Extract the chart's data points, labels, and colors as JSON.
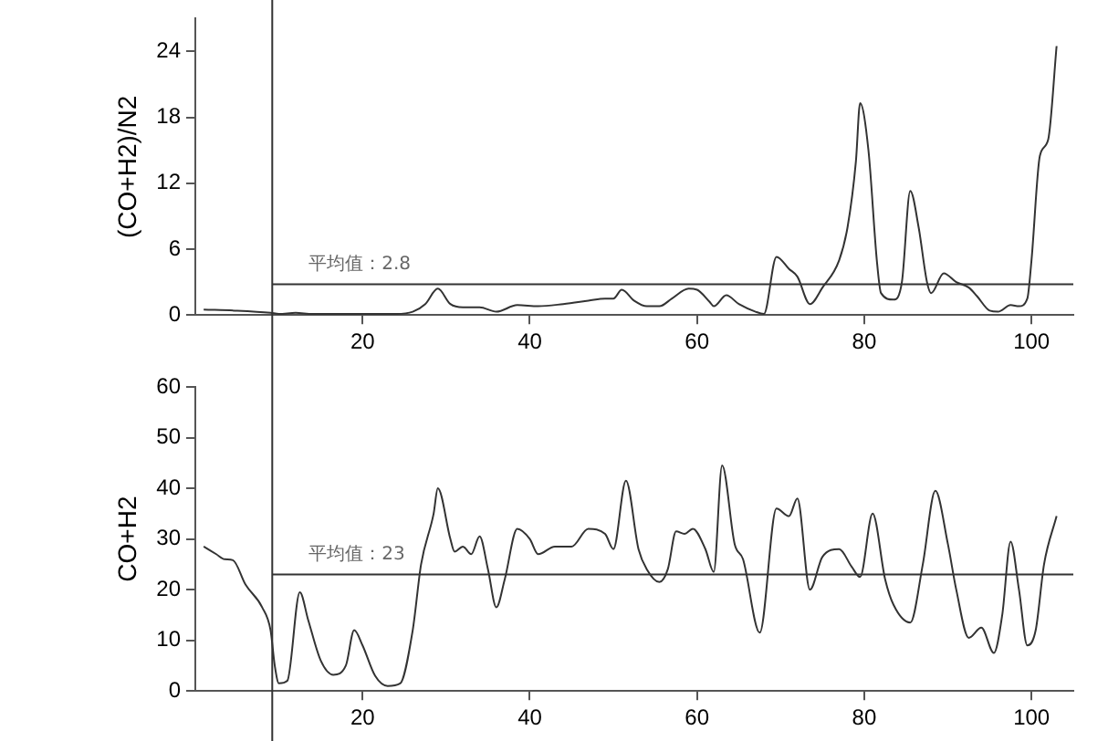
{
  "chart_data": [
    {
      "type": "line",
      "ylabel": "(CO+H2)/N2",
      "xlim": [
        0,
        105
      ],
      "xticks": [
        20,
        40,
        60,
        80,
        100
      ],
      "ylim": [
        0,
        27
      ],
      "yticks": [
        0,
        6,
        12,
        18,
        24
      ],
      "grid": false,
      "legend": false,
      "marker": "none",
      "line_style": "solid",
      "series": [
        {
          "color": "#333333",
          "x": [
            1,
            5,
            9,
            10,
            12,
            14,
            20,
            24,
            26,
            27.5,
            29,
            30.5,
            32,
            34,
            36,
            38.5,
            41,
            44,
            47,
            49,
            50,
            51,
            52.5,
            54,
            55.5,
            57,
            59,
            60,
            61.5,
            62,
            63.5,
            65,
            67,
            68,
            69.5,
            71,
            72,
            73.5,
            75,
            77,
            78,
            79,
            79.5,
            80.5,
            81.5,
            82,
            83.5,
            84.5,
            85.5,
            86.5,
            87.5,
            88,
            89.5,
            91,
            92.5,
            93.5,
            95,
            96,
            97.5,
            98.5,
            99.5,
            100,
            101,
            102,
            103
          ],
          "values": [
            0.5,
            0.4,
            0.2,
            0.1,
            0.2,
            0.1,
            0.1,
            0.1,
            0.3,
            1,
            2.4,
            1,
            0.7,
            0.7,
            0.3,
            0.9,
            0.8,
            1,
            1.3,
            1.5,
            1.5,
            2.3,
            1.3,
            0.8,
            0.8,
            1.5,
            2.4,
            2.3,
            1.2,
            0.8,
            1.8,
            1,
            0.3,
            0.1,
            5.3,
            4.2,
            3.5,
            1,
            2.5,
            5,
            8,
            14,
            19.3,
            15,
            5,
            2,
            1.4,
            3,
            11.3,
            8,
            3,
            2,
            3.8,
            3,
            2.5,
            1.7,
            0.4,
            0.3,
            0.9,
            0.8,
            1.5,
            5,
            14.5,
            16,
            24.5
          ]
        }
      ],
      "ref_lines": [
        {
          "axis": "x",
          "value": 9.2
        },
        {
          "axis": "y",
          "value": 2.8,
          "label": "平均值：2.8"
        }
      ]
    },
    {
      "type": "line",
      "ylabel": "CO+H2",
      "xlim": [
        0,
        105
      ],
      "xticks": [
        20,
        40,
        60,
        80,
        100
      ],
      "ylim": [
        0,
        60
      ],
      "yticks": [
        0,
        10,
        20,
        30,
        40,
        50,
        60
      ],
      "grid": false,
      "legend": false,
      "marker": "none",
      "line_style": "solid",
      "series": [
        {
          "color": "#333333",
          "x": [
            1,
            2.5,
            3.5,
            4.5,
            6,
            8,
            9,
            9.5,
            10,
            11,
            12.5,
            13.5,
            15,
            16.5,
            18,
            19,
            20,
            21.5,
            23,
            24.5,
            26,
            27,
            28.5,
            29,
            30.5,
            31,
            32,
            33,
            34,
            35,
            36,
            37,
            38.5,
            40,
            41,
            43,
            45,
            47,
            49,
            50,
            51.5,
            53,
            54,
            55.5,
            56.5,
            57.5,
            58.5,
            59.5,
            61,
            62,
            63,
            64.5,
            65.5,
            67.5,
            69.5,
            71,
            72,
            73.5,
            75,
            77,
            78.5,
            79.5,
            81,
            82.5,
            83.5,
            85.5,
            87,
            88.5,
            90,
            91,
            92.5,
            94,
            95.5,
            96.5,
            97.5,
            98.5,
            99.5,
            100.5,
            101.5,
            103
          ],
          "values": [
            28.5,
            27,
            26,
            25.8,
            21,
            16.5,
            12,
            5,
            1.5,
            2,
            19.5,
            14,
            6,
            3.2,
            5,
            12,
            9,
            3,
            1,
            1.5,
            12,
            25,
            35,
            40,
            30,
            27.5,
            28.5,
            27,
            30.5,
            24,
            16.5,
            22,
            32,
            30,
            27,
            28.5,
            28.5,
            32,
            31,
            28,
            41.5,
            28,
            24,
            21.5,
            24,
            31.5,
            31,
            32,
            28,
            23.5,
            44.5,
            29,
            26,
            11.5,
            36,
            34.5,
            38,
            20,
            26.5,
            28,
            24.5,
            22.5,
            35,
            22,
            17,
            13.5,
            25,
            39.5,
            29,
            20,
            10.5,
            12.5,
            7.5,
            15,
            29.5,
            20,
            9,
            12,
            25,
            34.5
          ]
        }
      ],
      "ref_lines": [
        {
          "axis": "x",
          "value": 9.2
        },
        {
          "axis": "y",
          "value": 23,
          "label": "平均值：23"
        }
      ]
    }
  ]
}
